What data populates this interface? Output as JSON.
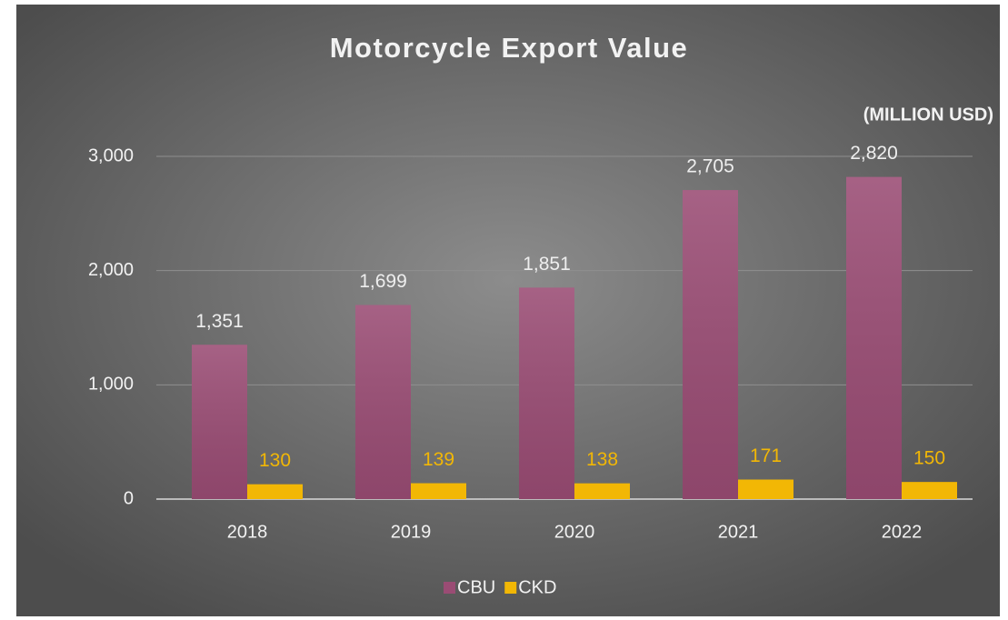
{
  "chart_data": {
    "type": "bar",
    "title": "Motorcycle Export Value",
    "annotation": "(MILLION USD)",
    "categories": [
      "2018",
      "2019",
      "2020",
      "2021",
      "2022"
    ],
    "series": [
      {
        "name": "CBU",
        "color": "#9a4c74",
        "values": [
          1351,
          1699,
          1851,
          2705,
          2820
        ],
        "value_labels": [
          "1,351",
          "1,699",
          "1,851",
          "2,705",
          "2,820"
        ]
      },
      {
        "name": "CKD",
        "color": "#f2b705",
        "values": [
          130,
          139,
          138,
          171,
          150
        ]
      }
    ],
    "ylim": [
      0,
      3000
    ],
    "yticks": [
      0,
      {
        "value": 1000,
        "label": "1,000"
      },
      {
        "value": 2000,
        "label": "2,000"
      },
      {
        "value": 3000,
        "label": "3,000"
      }
    ],
    "grid": true,
    "legend": "bottom"
  }
}
